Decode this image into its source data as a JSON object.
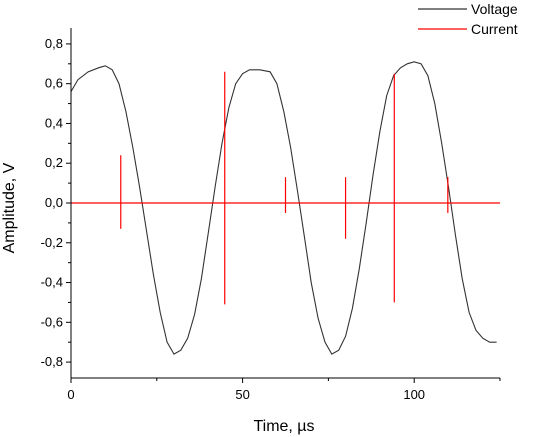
{
  "chart_data": {
    "type": "line",
    "xlabel": "Time, µs",
    "ylabel": "Amplitude, V",
    "xlim": [
      0,
      125
    ],
    "ylim": [
      -0.88,
      0.88
    ],
    "x_ticks": [
      0,
      50,
      100
    ],
    "x_tick_labels": [
      "0",
      "50",
      "100"
    ],
    "y_ticks": [
      -0.8,
      -0.6,
      -0.4,
      -0.2,
      0.0,
      0.2,
      0.4,
      0.6,
      0.8
    ],
    "y_tick_labels": [
      "-0,8",
      "-0,6",
      "-0,4",
      "-0,2",
      "0,0",
      "0,2",
      "0,4",
      "0,6",
      "0,8"
    ],
    "grid": false,
    "legend_position": "top-right",
    "series": [
      {
        "name": "Voltage",
        "color": "#333333",
        "x": [
          0,
          2,
          5,
          8,
          10,
          12,
          14,
          16,
          18,
          20,
          22,
          24,
          26,
          28,
          30,
          32,
          34,
          36,
          38,
          40,
          42,
          44,
          46,
          48,
          50,
          52,
          55,
          58,
          60,
          62,
          64,
          66,
          68,
          70,
          72,
          74,
          76,
          78,
          80,
          82,
          84,
          86,
          88,
          90,
          92,
          94,
          96,
          98,
          100,
          102,
          104,
          106,
          108,
          110,
          112,
          114,
          116,
          118,
          120,
          122,
          124
        ],
        "y": [
          0.56,
          0.62,
          0.66,
          0.68,
          0.69,
          0.67,
          0.6,
          0.46,
          0.28,
          0.08,
          -0.14,
          -0.36,
          -0.55,
          -0.7,
          -0.76,
          -0.74,
          -0.68,
          -0.56,
          -0.38,
          -0.15,
          0.08,
          0.3,
          0.48,
          0.6,
          0.65,
          0.67,
          0.67,
          0.66,
          0.6,
          0.46,
          0.28,
          0.06,
          -0.17,
          -0.4,
          -0.58,
          -0.7,
          -0.76,
          -0.74,
          -0.67,
          -0.53,
          -0.33,
          -0.1,
          0.14,
          0.36,
          0.54,
          0.64,
          0.68,
          0.7,
          0.71,
          0.7,
          0.64,
          0.5,
          0.3,
          0.08,
          -0.16,
          -0.38,
          -0.55,
          -0.64,
          -0.68,
          -0.7,
          -0.7
        ]
      },
      {
        "name": "Current",
        "color": "#ff0000",
        "baseline": 0.0,
        "spikes": [
          {
            "x": 14.5,
            "max": 0.24,
            "min": -0.13
          },
          {
            "x": 44.8,
            "max": 0.66,
            "min": -0.51
          },
          {
            "x": 62.5,
            "max": 0.13,
            "min": -0.05
          },
          {
            "x": 80.0,
            "max": 0.13,
            "min": -0.18
          },
          {
            "x": 94.2,
            "max": 0.65,
            "min": -0.5
          },
          {
            "x": 109.8,
            "max": 0.13,
            "min": -0.05
          }
        ]
      }
    ]
  }
}
